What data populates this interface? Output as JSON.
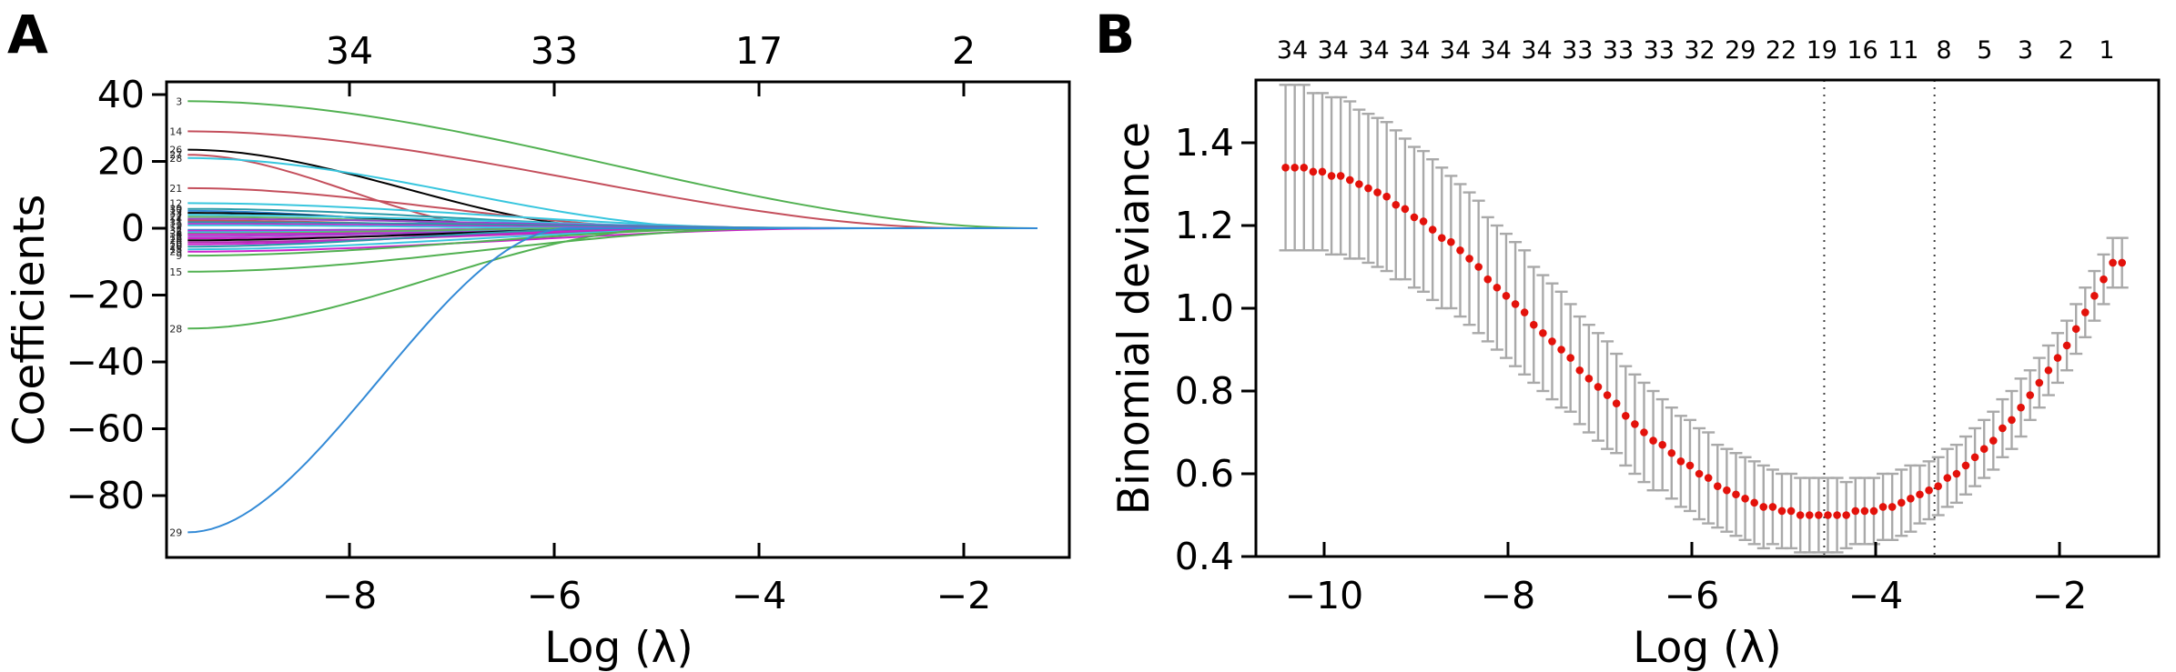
{
  "figure": {
    "background": "#ffffff",
    "panels": [
      {
        "letter": "A"
      },
      {
        "letter": "B"
      }
    ]
  },
  "chart_data": [
    {
      "panel": "A",
      "type": "line",
      "description": "LASSO coefficient profiles versus log lambda",
      "xlabel": "Log (λ)",
      "ylabel": "Coefficients",
      "x_tick_values": [
        -8,
        -6,
        -4,
        -2
      ],
      "x_tick_labels": [
        "−8",
        "−6",
        "−4",
        "−2"
      ],
      "y_tick_values": [
        40,
        20,
        0,
        -20,
        -40,
        -60,
        -80
      ],
      "y_tick_labels": [
        "40",
        "20",
        "0",
        "−20",
        "−40",
        "−60",
        "−80"
      ],
      "top_axis_labels": [
        "34",
        "33",
        "17",
        "2"
      ],
      "xlim": [
        -9.8,
        -0.95
      ],
      "ylim": [
        -98,
        44
      ],
      "curve_start_x": -9.58,
      "curve_end_x": -1.28,
      "curves": [
        {
          "label": "3",
          "color": "#52b152",
          "start": 38,
          "zero_at": -1.3
        },
        {
          "label": "14",
          "color": "#c44f5c",
          "start": 29,
          "zero_at": -1.95
        },
        {
          "label": "26",
          "color": "#000000",
          "start": 23.5,
          "zero_at": -5.3
        },
        {
          "label": "27",
          "color": "#c44f5c",
          "start": 22,
          "zero_at": -6.4
        },
        {
          "label": "28",
          "color": "#38c6de",
          "start": 21,
          "zero_at": -4.25
        },
        {
          "label": "21",
          "color": "#c44f5c",
          "start": 12,
          "zero_at": -4.6
        },
        {
          "label": "12",
          "color": "#38c6de",
          "start": 7.5,
          "zero_at": -3.55
        },
        {
          "label": "30",
          "color": "#2a9aa8",
          "start": 5.8,
          "zero_at": -4.1
        },
        {
          "label": "17",
          "color": "#338ad6",
          "start": 5.2,
          "zero_at": -5.75
        },
        {
          "label": "33",
          "color": "#000000",
          "start": 4.6,
          "zero_at": -5.0
        },
        {
          "label": "7",
          "color": "#38c6de",
          "start": 4.0,
          "zero_at": -3.3
        },
        {
          "label": "22",
          "color": "#63b063",
          "start": 3.4,
          "zero_at": -4.4
        },
        {
          "label": "4",
          "color": "#9a45c9",
          "start": 2.8,
          "zero_at": -3.0
        },
        {
          "label": "11",
          "color": "#c44f5c",
          "start": 2.3,
          "zero_at": -5.1
        },
        {
          "label": "31",
          "color": "#2a9aa8",
          "start": 1.8,
          "zero_at": -2.6
        },
        {
          "label": "1",
          "color": "#cc22cc",
          "start": 1.3,
          "zero_at": -3.9
        },
        {
          "label": "19",
          "color": "#38c6de",
          "start": 0.9,
          "zero_at": -4.9
        },
        {
          "label": "32",
          "color": "#338ad6",
          "start": -0.5,
          "zero_at": -2.4
        },
        {
          "label": "2",
          "color": "#cc22cc",
          "start": -0.8,
          "zero_at": -4.7
        },
        {
          "label": "5",
          "color": "#38c6de",
          "start": -1.2,
          "zero_at": -3.6
        },
        {
          "label": "34",
          "color": "#63b063",
          "start": -1.6,
          "zero_at": -5.4
        },
        {
          "label": "8",
          "color": "#cc22cc",
          "start": -1.8,
          "zero_at": -2.9
        },
        {
          "label": "13",
          "color": "#9a45c9",
          "start": -2.4,
          "zero_at": -4.3
        },
        {
          "label": "16",
          "color": "#cc22cc",
          "start": -3.0,
          "zero_at": -3.2
        },
        {
          "label": "24",
          "color": "#000000",
          "start": -3.6,
          "zero_at": -4.9
        },
        {
          "label": "6",
          "color": "#b030b0",
          "start": -4.2,
          "zero_at": -3.7
        },
        {
          "label": "10",
          "color": "#cc22cc",
          "start": -4.8,
          "zero_at": -4.5
        },
        {
          "label": "20",
          "color": "#2a9aa8",
          "start": -5.5,
          "zero_at": -5.2
        },
        {
          "label": "18",
          "color": "#38c6de",
          "start": -6.3,
          "zero_at": -4.0
        },
        {
          "label": "23",
          "color": "#cc22cc",
          "start": -7.0,
          "zero_at": -3.1
        },
        {
          "label": "9",
          "color": "#52b152",
          "start": -8.2,
          "zero_at": -4.0
        },
        {
          "label": "15",
          "color": "#52b152",
          "start": -13,
          "zero_at": -3.75
        },
        {
          "label": "28",
          "color": "#52b152",
          "start": -30,
          "zero_at": -4.8
        },
        {
          "label": "29",
          "color": "#338ad6",
          "start": -91,
          "zero_at": -5.85
        }
      ]
    },
    {
      "panel": "B",
      "type": "scatter",
      "description": "Cross-validated binomial deviance versus log lambda with error bars",
      "xlabel": "Log (λ)",
      "ylabel": "Binomial deviance",
      "x_tick_values": [
        -10,
        -8,
        -6,
        -4,
        -2
      ],
      "x_tick_labels": [
        "−10",
        "−8",
        "−6",
        "−4",
        "−2"
      ],
      "y_tick_values": [
        0.4,
        0.6,
        0.8,
        1.0,
        1.2,
        1.4
      ],
      "y_tick_labels": [
        "0.4",
        "0.6",
        "0.8",
        "1.0",
        "1.2",
        "1.4"
      ],
      "top_axis_labels": [
        "34",
        "34",
        "34",
        "34",
        "34",
        "34",
        "34",
        "33",
        "33",
        "33",
        "32",
        "29",
        "22",
        "19",
        "16",
        "11",
        "8",
        "5",
        "3",
        "2",
        "1"
      ],
      "dotted_vlines": [
        -4.56,
        -3.36
      ],
      "point_color": "#e3120b",
      "errorbar_color": "#a9a9a9",
      "xlim": [
        -10.75,
        -0.92
      ],
      "ylim": [
        0.4,
        1.55
      ],
      "x": [
        -10.42,
        -10.32,
        -10.22,
        -10.12,
        -10.02,
        -9.92,
        -9.82,
        -9.72,
        -9.62,
        -9.52,
        -9.42,
        -9.32,
        -9.22,
        -9.12,
        -9.02,
        -8.92,
        -8.82,
        -8.72,
        -8.62,
        -8.52,
        -8.42,
        -8.32,
        -8.22,
        -8.12,
        -8.02,
        -7.92,
        -7.82,
        -7.72,
        -7.62,
        -7.52,
        -7.42,
        -7.32,
        -7.22,
        -7.12,
        -7.02,
        -6.92,
        -6.82,
        -6.72,
        -6.62,
        -6.52,
        -6.42,
        -6.32,
        -6.22,
        -6.12,
        -6.02,
        -5.92,
        -5.82,
        -5.72,
        -5.62,
        -5.52,
        -5.42,
        -5.32,
        -5.22,
        -5.12,
        -5.02,
        -4.92,
        -4.82,
        -4.72,
        -4.62,
        -4.52,
        -4.42,
        -4.32,
        -4.22,
        -4.12,
        -4.02,
        -3.92,
        -3.82,
        -3.72,
        -3.62,
        -3.52,
        -3.42,
        -3.32,
        -3.22,
        -3.12,
        -3.02,
        -2.92,
        -2.82,
        -2.72,
        -2.62,
        -2.52,
        -2.42,
        -2.32,
        -2.22,
        -2.12,
        -2.02,
        -1.92,
        -1.82,
        -1.72,
        -1.62,
        -1.52,
        -1.42,
        -1.32
      ],
      "y": [
        1.34,
        1.34,
        1.34,
        1.33,
        1.33,
        1.32,
        1.32,
        1.31,
        1.3,
        1.29,
        1.28,
        1.27,
        1.25,
        1.24,
        1.22,
        1.21,
        1.19,
        1.17,
        1.16,
        1.14,
        1.12,
        1.1,
        1.07,
        1.05,
        1.03,
        1.01,
        0.99,
        0.96,
        0.94,
        0.92,
        0.9,
        0.88,
        0.85,
        0.83,
        0.81,
        0.79,
        0.77,
        0.74,
        0.72,
        0.7,
        0.68,
        0.67,
        0.65,
        0.63,
        0.62,
        0.6,
        0.59,
        0.57,
        0.56,
        0.55,
        0.54,
        0.53,
        0.52,
        0.52,
        0.51,
        0.51,
        0.5,
        0.5,
        0.5,
        0.5,
        0.5,
        0.5,
        0.51,
        0.51,
        0.51,
        0.52,
        0.52,
        0.53,
        0.54,
        0.55,
        0.56,
        0.57,
        0.59,
        0.6,
        0.62,
        0.64,
        0.66,
        0.68,
        0.71,
        0.73,
        0.76,
        0.79,
        0.82,
        0.85,
        0.88,
        0.91,
        0.95,
        0.99,
        1.03,
        1.07,
        1.11,
        1.11
      ],
      "err": [
        0.2,
        0.2,
        0.2,
        0.19,
        0.19,
        0.19,
        0.19,
        0.19,
        0.18,
        0.18,
        0.18,
        0.18,
        0.18,
        0.17,
        0.17,
        0.17,
        0.17,
        0.17,
        0.16,
        0.16,
        0.16,
        0.16,
        0.15,
        0.15,
        0.15,
        0.15,
        0.15,
        0.14,
        0.14,
        0.14,
        0.14,
        0.13,
        0.13,
        0.13,
        0.13,
        0.13,
        0.12,
        0.12,
        0.12,
        0.12,
        0.12,
        0.11,
        0.11,
        0.11,
        0.11,
        0.11,
        0.11,
        0.1,
        0.1,
        0.1,
        0.1,
        0.1,
        0.1,
        0.09,
        0.09,
        0.09,
        0.09,
        0.09,
        0.09,
        0.09,
        0.09,
        0.08,
        0.08,
        0.08,
        0.08,
        0.08,
        0.08,
        0.08,
        0.08,
        0.07,
        0.07,
        0.07,
        0.07,
        0.07,
        0.07,
        0.07,
        0.07,
        0.07,
        0.07,
        0.07,
        0.07,
        0.06,
        0.06,
        0.06,
        0.06,
        0.06,
        0.06,
        0.06,
        0.06,
        0.06,
        0.06,
        0.06
      ]
    }
  ]
}
